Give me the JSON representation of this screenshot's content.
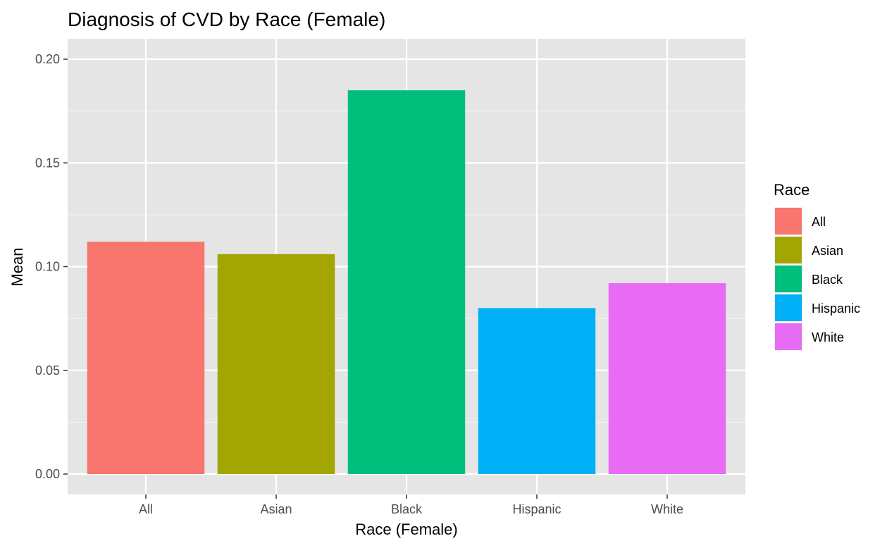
{
  "chart_data": {
    "type": "bar",
    "title": "Diagnosis of CVD by Race (Female)",
    "xlabel": "Race (Female)",
    "ylabel": "Mean",
    "categories": [
      "All",
      "Asian",
      "Black",
      "Hispanic",
      "White"
    ],
    "values": [
      0.112,
      0.106,
      0.185,
      0.08,
      0.092
    ],
    "colors": [
      "#F8766D",
      "#A3A500",
      "#00BF7D",
      "#00B0F6",
      "#E76BF3"
    ],
    "ylim": [
      0,
      0.2
    ],
    "yticks": [
      "0.00",
      "0.05",
      "0.10",
      "0.15",
      "0.20"
    ],
    "ytick_values": [
      0,
      0.05,
      0.1,
      0.15,
      0.2
    ],
    "grid": true,
    "panel_background": "#E5E5E5",
    "legend": {
      "title": "Race",
      "position": "right",
      "entries": [
        "All",
        "Asian",
        "Black",
        "Hispanic",
        "White"
      ]
    }
  }
}
